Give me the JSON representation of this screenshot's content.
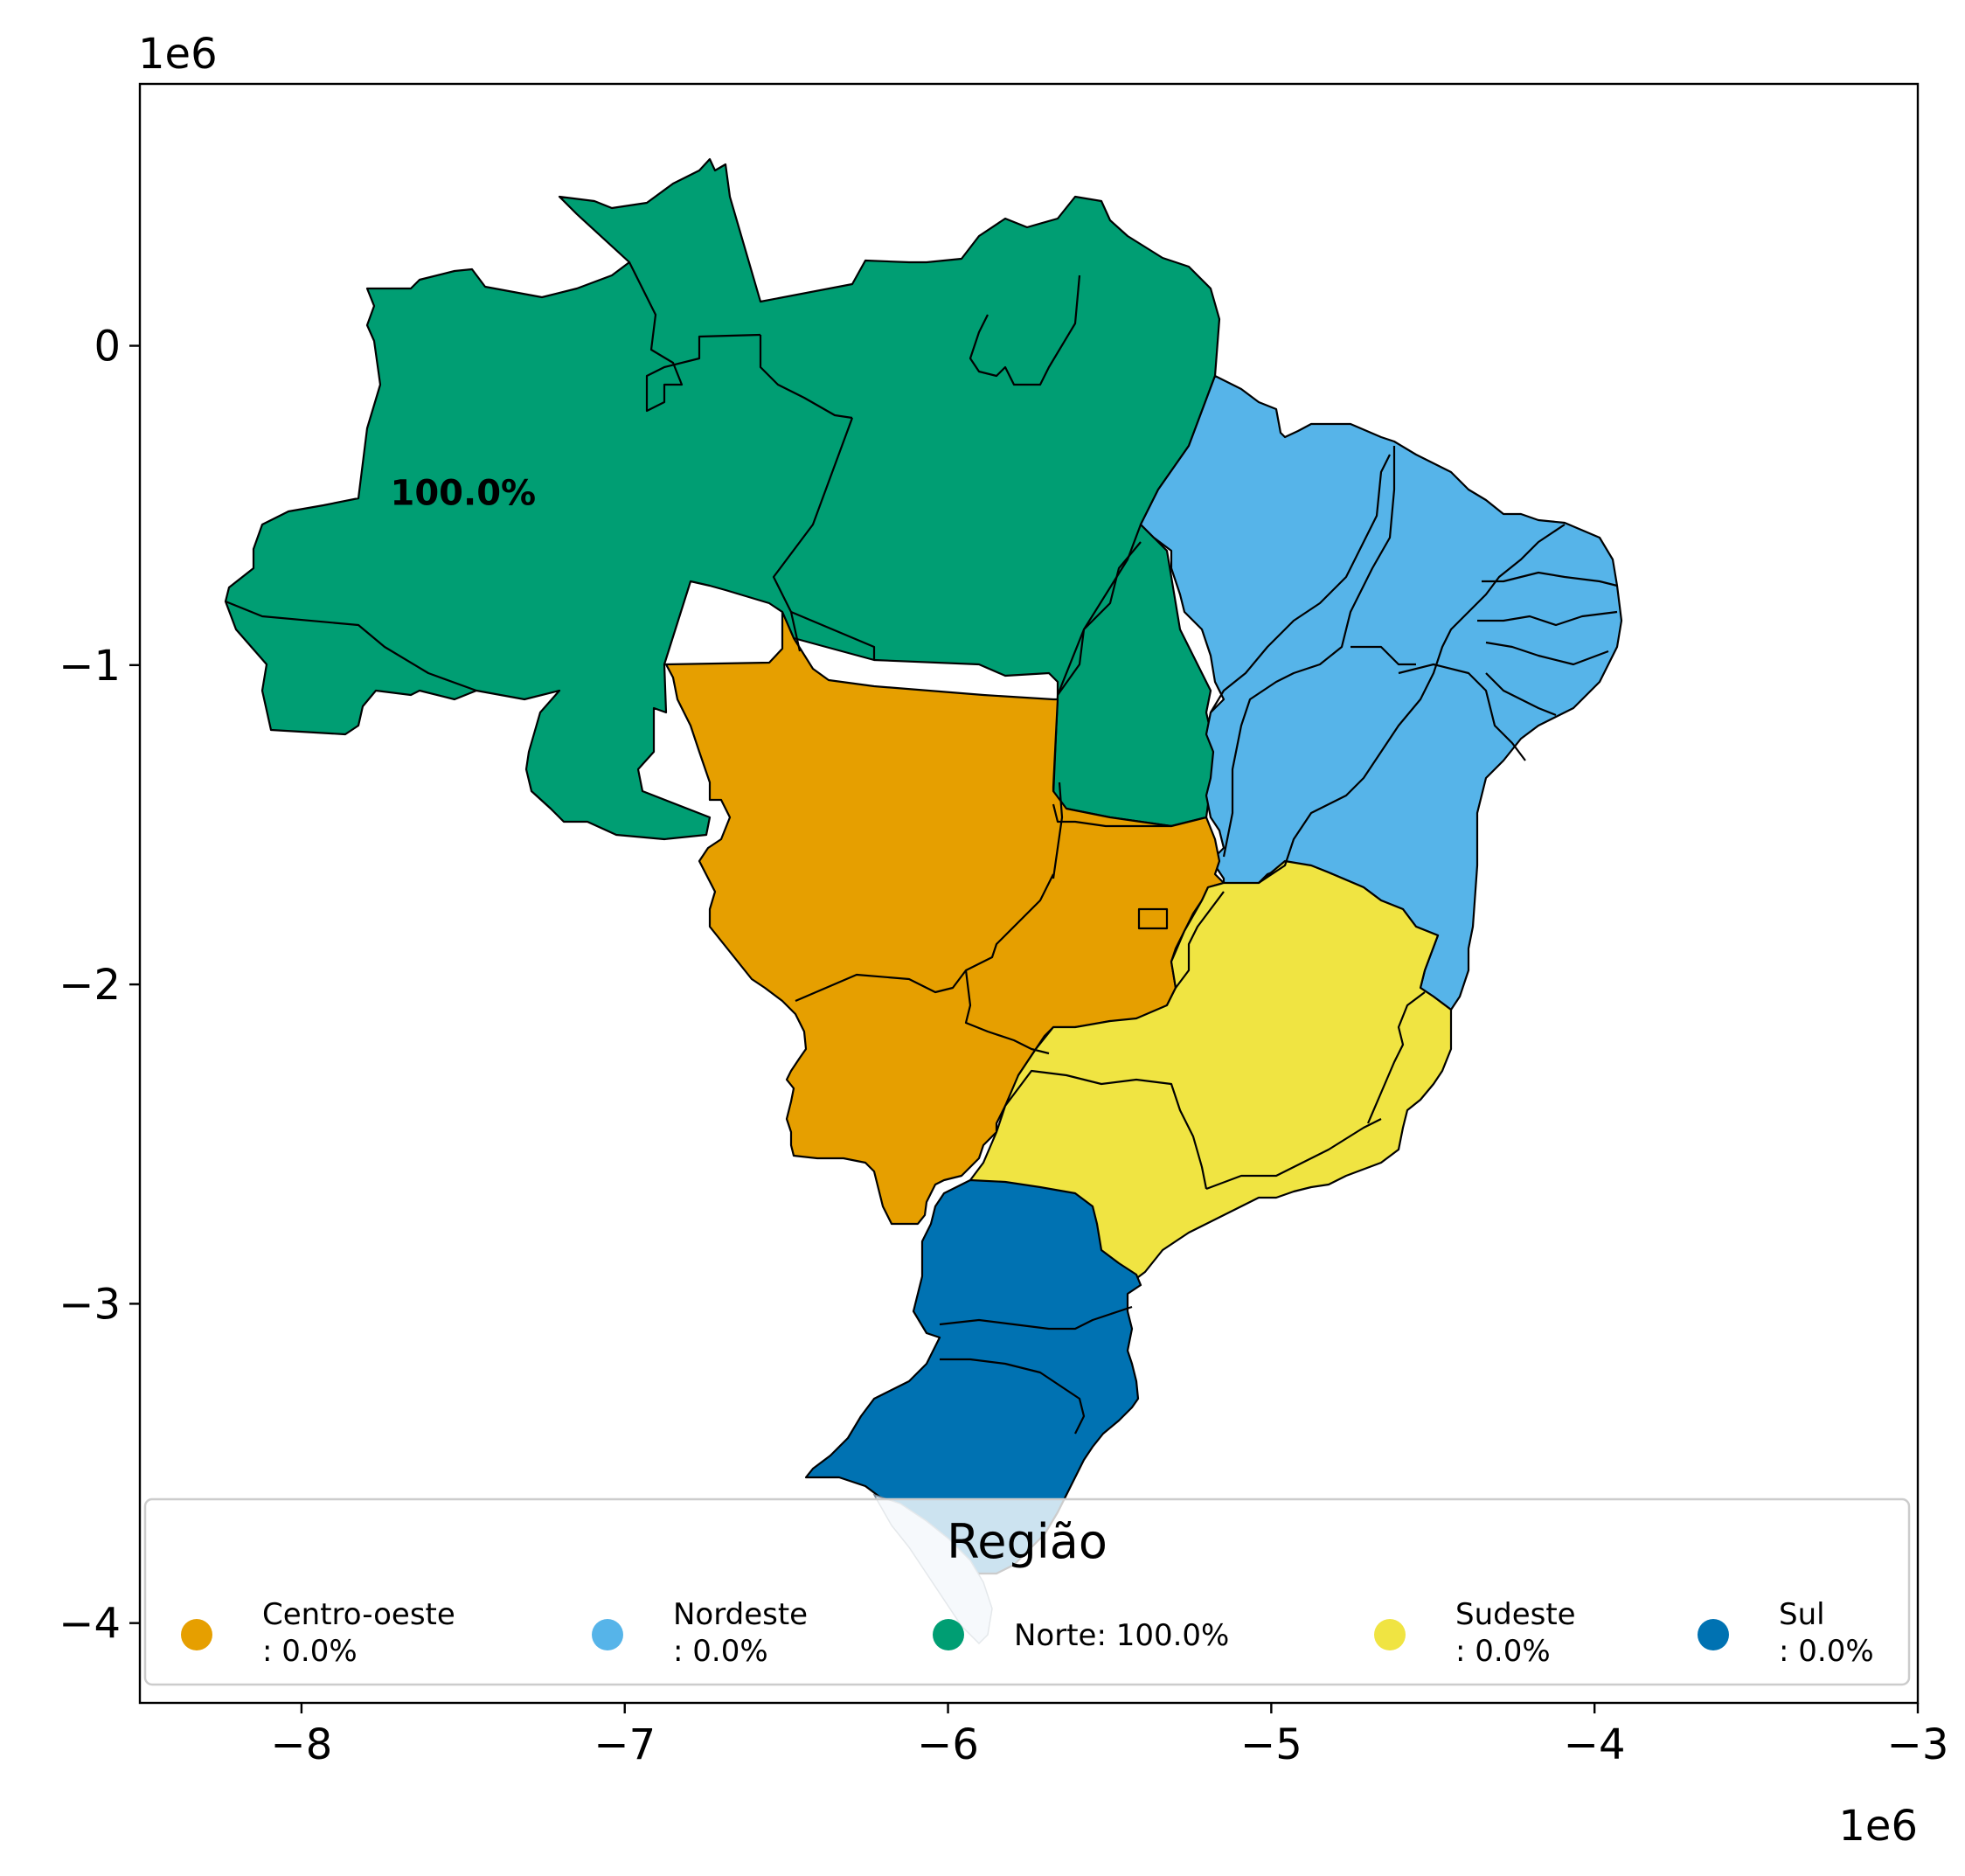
{
  "chart_data": {
    "type": "map",
    "x_ticks": [
      "−8",
      "−7",
      "−6",
      "−5",
      "−4",
      "−3"
    ],
    "y_ticks": [
      "0",
      "−1",
      "−2",
      "−3",
      "−4"
    ],
    "x_offset_label": "1e6",
    "y_offset_label": "1e6",
    "xlim": [
      -8.5,
      -3.0
    ],
    "ylim": [
      -4.25,
      0.82
    ],
    "legend": {
      "title": "Região",
      "placement": "lower-center",
      "entries": [
        {
          "region": "Centro-oeste",
          "label_line1": "Centro-oeste",
          "label_line2": ": 0.0%",
          "value": 0.0,
          "color": "#E69F00"
        },
        {
          "region": "Nordeste",
          "label_line1": "Nordeste",
          "label_line2": ": 0.0%",
          "value": 0.0,
          "color": "#56B4E9"
        },
        {
          "region": "Norte",
          "label_line1": "Norte: 100.0%",
          "label_line2": "",
          "value": 100.0,
          "color": "#009E73"
        },
        {
          "region": "Sudeste",
          "label_line1": "Sudeste",
          "label_line2": ": 0.0%",
          "value": 0.0,
          "color": "#F0E442"
        },
        {
          "region": "Sul",
          "label_line1": "Sul",
          "label_line2": ": 0.0%",
          "value": 0.0,
          "color": "#0072B2"
        }
      ]
    },
    "annotation": {
      "text": "100.0%",
      "region": "Norte",
      "x": -7.5,
      "y": -0.46
    }
  }
}
